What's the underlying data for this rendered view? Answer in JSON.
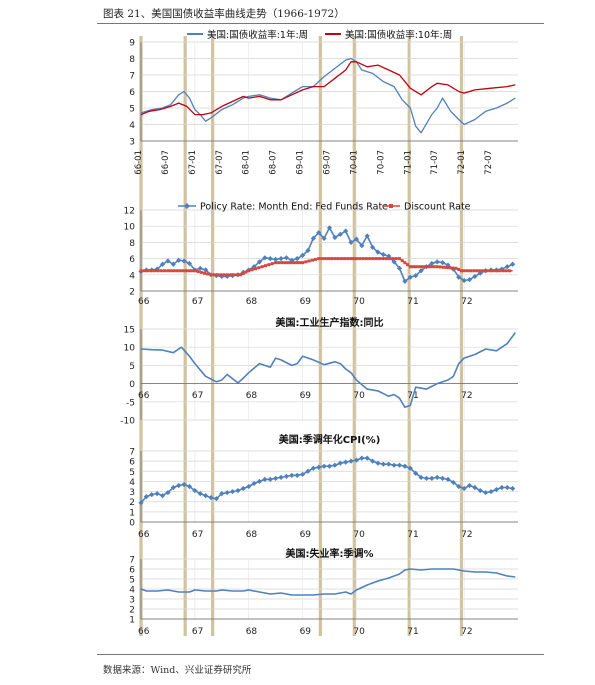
{
  "figure_title": "图表 21、美国国债收益率曲线走势（1966-1972）",
  "source": "数据来源：Wind、兴业证券研究所",
  "colors": {
    "blue": "#4f81bd",
    "red": "#c0000e",
    "recession_band": "#c9b98f",
    "diamond": "#4f81bd",
    "square": "#d9473f"
  },
  "chart_data": [
    {
      "type": "line",
      "title": "",
      "ylim": [
        3,
        9
      ],
      "yticks": [
        3,
        4,
        5,
        6,
        7,
        8,
        9
      ],
      "xlim": [
        1966.0,
        1973.0
      ],
      "xtick_labels": [
        "66-01",
        "66-07",
        "67-01",
        "67-07",
        "68-01",
        "68-07",
        "69-01",
        "69-07",
        "70-01",
        "70-07",
        "71-01",
        "71-07",
        "72-01",
        "72-07"
      ],
      "grid": true,
      "legend_position": "top",
      "series": [
        {
          "name": "美国:国债收益率:1年:周",
          "x": [
            1966.0,
            1966.2,
            1966.4,
            1966.55,
            1966.7,
            1966.8,
            1966.9,
            1967.0,
            1967.1,
            1967.2,
            1967.3,
            1967.5,
            1967.7,
            1967.9,
            1968.0,
            1968.2,
            1968.4,
            1968.6,
            1968.8,
            1969.0,
            1969.2,
            1969.4,
            1969.6,
            1969.8,
            1969.9,
            1970.0,
            1970.1,
            1970.3,
            1970.5,
            1970.7,
            1970.85,
            1971.0,
            1971.1,
            1971.2,
            1971.4,
            1971.5,
            1971.6,
            1971.75,
            1971.9,
            1972.0,
            1972.2,
            1972.4,
            1972.6,
            1972.8,
            1972.95
          ],
          "values": [
            4.7,
            4.9,
            5.0,
            5.2,
            5.8,
            6.0,
            5.6,
            4.9,
            4.6,
            4.2,
            4.4,
            4.9,
            5.2,
            5.6,
            5.7,
            5.8,
            5.6,
            5.5,
            5.9,
            6.3,
            6.3,
            6.9,
            7.4,
            7.9,
            8.0,
            7.8,
            7.3,
            7.1,
            6.6,
            6.3,
            5.5,
            5.0,
            3.9,
            3.5,
            4.6,
            5.0,
            5.6,
            4.8,
            4.3,
            4.0,
            4.3,
            4.8,
            5.0,
            5.3,
            5.6
          ]
        },
        {
          "name": "美国:国债收益率:10年:周",
          "x": [
            1966.0,
            1966.15,
            1966.35,
            1966.55,
            1966.7,
            1966.85,
            1967.0,
            1967.15,
            1967.3,
            1967.5,
            1967.7,
            1967.9,
            1968.0,
            1968.2,
            1968.4,
            1968.6,
            1968.8,
            1969.0,
            1969.2,
            1969.4,
            1969.6,
            1969.8,
            1969.9,
            1970.0,
            1970.2,
            1970.4,
            1970.6,
            1970.8,
            1971.0,
            1971.2,
            1971.4,
            1971.5,
            1971.7,
            1971.9,
            1972.0,
            1972.2,
            1972.5,
            1972.8,
            1972.95
          ],
          "values": [
            4.6,
            4.8,
            4.9,
            5.1,
            5.3,
            5.1,
            4.6,
            4.6,
            4.7,
            5.1,
            5.4,
            5.7,
            5.6,
            5.7,
            5.5,
            5.5,
            5.8,
            6.1,
            6.3,
            6.3,
            6.8,
            7.3,
            7.8,
            7.8,
            7.5,
            7.6,
            7.3,
            7.0,
            6.2,
            5.8,
            6.3,
            6.5,
            6.4,
            6.0,
            5.9,
            6.1,
            6.2,
            6.3,
            6.4
          ]
        }
      ]
    },
    {
      "type": "line",
      "title": "",
      "ylim": [
        2,
        12
      ],
      "yticks": [
        2,
        4,
        6,
        8,
        10,
        12
      ],
      "xlim": [
        1966.0,
        1973.0
      ],
      "xtick_labels": [
        "66",
        "67",
        "68",
        "69",
        "70",
        "71",
        "72"
      ],
      "grid": true,
      "legend_position": "top",
      "series": [
        {
          "name": "Policy Rate: Month End: Fed Funds Rate",
          "marker": "diamond",
          "x": [
            1966.0,
            1966.1,
            1966.2,
            1966.3,
            1966.4,
            1966.5,
            1966.6,
            1966.7,
            1966.8,
            1966.9,
            1967.0,
            1967.1,
            1967.2,
            1967.3,
            1967.4,
            1967.5,
            1967.6,
            1967.7,
            1967.8,
            1967.9,
            1968.0,
            1968.1,
            1968.2,
            1968.3,
            1968.4,
            1968.5,
            1968.6,
            1968.7,
            1968.8,
            1968.9,
            1969.0,
            1969.1,
            1969.2,
            1969.3,
            1969.4,
            1969.5,
            1969.6,
            1969.7,
            1969.8,
            1969.9,
            1970.0,
            1970.1,
            1970.2,
            1970.3,
            1970.4,
            1970.5,
            1970.6,
            1970.7,
            1970.8,
            1970.9,
            1971.0,
            1971.1,
            1971.2,
            1971.3,
            1971.4,
            1971.5,
            1971.6,
            1971.7,
            1971.8,
            1971.9,
            1972.0,
            1972.1,
            1972.2,
            1972.3,
            1972.4,
            1972.5,
            1972.6,
            1972.7,
            1972.8,
            1972.9
          ],
          "values": [
            4.4,
            4.6,
            4.6,
            4.7,
            5.3,
            5.7,
            5.3,
            5.8,
            5.7,
            5.4,
            4.6,
            4.8,
            4.6,
            4.0,
            3.9,
            3.8,
            3.8,
            3.9,
            4.0,
            4.3,
            4.6,
            5.0,
            5.6,
            6.1,
            6.0,
            5.9,
            6.0,
            6.1,
            5.8,
            6.0,
            6.4,
            7.0,
            8.5,
            9.2,
            8.5,
            9.8,
            8.6,
            9.0,
            9.4,
            8.0,
            8.4,
            7.6,
            8.8,
            7.4,
            6.8,
            6.5,
            6.3,
            5.6,
            4.8,
            3.2,
            3.7,
            3.9,
            4.5,
            5.0,
            5.4,
            5.6,
            5.5,
            5.2,
            4.7,
            3.7,
            3.3,
            3.4,
            3.8,
            4.2,
            4.5,
            4.6,
            4.6,
            4.7,
            5.0,
            5.3
          ]
        },
        {
          "name": "Discount Rate",
          "marker": "square",
          "x": [
            1966.0,
            1966.5,
            1966.9,
            1967.0,
            1967.3,
            1967.85,
            1968.0,
            1968.25,
            1968.5,
            1968.9,
            1969.0,
            1969.3,
            1969.9,
            1970.0,
            1970.8,
            1970.9,
            1971.0,
            1971.1,
            1971.5,
            1971.85,
            1971.95,
            1972.0,
            1972.9
          ],
          "values": [
            4.5,
            4.5,
            4.5,
            4.5,
            4.0,
            4.0,
            4.5,
            5.0,
            5.5,
            5.5,
            5.5,
            6.0,
            6.0,
            6.0,
            6.0,
            5.5,
            5.0,
            5.0,
            5.0,
            4.8,
            4.5,
            4.5,
            4.5
          ]
        }
      ]
    },
    {
      "type": "line",
      "title": "美国:工业生产指数:同比",
      "ylim": [
        -10,
        15
      ],
      "yticks": [
        -10,
        -5,
        0,
        5,
        10,
        15
      ],
      "xlim": [
        1966.0,
        1973.0
      ],
      "xtick_labels": [
        "66",
        "67",
        "68",
        "69",
        "70",
        "71",
        "72"
      ],
      "grid": true,
      "series": [
        {
          "name": "美国:工业生产指数:同比",
          "x": [
            1966.0,
            1966.2,
            1966.4,
            1966.6,
            1966.75,
            1966.9,
            1967.0,
            1967.2,
            1967.4,
            1967.5,
            1967.6,
            1967.8,
            1967.9,
            1968.0,
            1968.2,
            1968.4,
            1968.5,
            1968.6,
            1968.8,
            1968.9,
            1969.0,
            1969.2,
            1969.4,
            1969.6,
            1969.7,
            1969.8,
            1969.9,
            1970.0,
            1970.2,
            1970.4,
            1970.6,
            1970.7,
            1970.8,
            1970.9,
            1971.0,
            1971.1,
            1971.3,
            1971.5,
            1971.7,
            1971.8,
            1971.9,
            1972.0,
            1972.2,
            1972.4,
            1972.6,
            1972.8,
            1972.95
          ],
          "values": [
            9.5,
            9.3,
            9.2,
            8.5,
            10.0,
            7.5,
            5.5,
            2.0,
            0.5,
            1.0,
            2.5,
            0.2,
            1.5,
            3.0,
            5.5,
            4.5,
            7.0,
            6.5,
            5.0,
            5.5,
            7.5,
            6.5,
            5.2,
            6.0,
            5.5,
            4.0,
            3.0,
            1.0,
            -1.5,
            -2.0,
            -3.5,
            -3.0,
            -4.0,
            -6.5,
            -6.0,
            -1.0,
            -1.5,
            0.0,
            1.0,
            2.0,
            5.5,
            7.0,
            8.0,
            9.5,
            9.0,
            11.0,
            14.0
          ]
        }
      ]
    },
    {
      "type": "line",
      "title": "美国:季调年化CPI(%)",
      "ylim": [
        0,
        7
      ],
      "yticks": [
        0,
        1,
        2,
        3,
        4,
        5,
        6,
        7
      ],
      "xlim": [
        1966.0,
        1973.0
      ],
      "xtick_labels": [
        "66",
        "67",
        "68",
        "69",
        "70",
        "71",
        "72"
      ],
      "grid": true,
      "series": [
        {
          "name": "美国:季调年化CPI(%)",
          "marker": "diamond",
          "x": [
            1966.0,
            1966.1,
            1966.2,
            1966.3,
            1966.4,
            1966.5,
            1966.6,
            1966.7,
            1966.8,
            1966.9,
            1967.0,
            1967.1,
            1967.2,
            1967.3,
            1967.4,
            1967.5,
            1967.6,
            1967.7,
            1967.8,
            1967.9,
            1968.0,
            1968.1,
            1968.2,
            1968.3,
            1968.4,
            1968.5,
            1968.6,
            1968.7,
            1968.8,
            1968.9,
            1969.0,
            1969.1,
            1969.2,
            1969.3,
            1969.4,
            1969.5,
            1969.6,
            1969.7,
            1969.8,
            1969.9,
            1970.0,
            1970.1,
            1970.2,
            1970.3,
            1970.4,
            1970.5,
            1970.6,
            1970.7,
            1970.8,
            1970.9,
            1971.0,
            1971.1,
            1971.2,
            1971.3,
            1971.4,
            1971.5,
            1971.6,
            1971.7,
            1971.8,
            1971.9,
            1972.0,
            1972.1,
            1972.2,
            1972.3,
            1972.4,
            1972.5,
            1972.6,
            1972.7,
            1972.8,
            1972.9
          ],
          "values": [
            1.9,
            2.5,
            2.7,
            2.8,
            2.6,
            2.9,
            3.4,
            3.6,
            3.7,
            3.5,
            3.1,
            2.8,
            2.6,
            2.4,
            2.3,
            2.8,
            2.9,
            3.0,
            3.1,
            3.3,
            3.5,
            3.8,
            4.0,
            4.2,
            4.2,
            4.3,
            4.4,
            4.5,
            4.6,
            4.6,
            4.7,
            5.0,
            5.3,
            5.4,
            5.5,
            5.5,
            5.6,
            5.8,
            5.9,
            6.0,
            6.1,
            6.3,
            6.3,
            6.0,
            5.8,
            5.7,
            5.7,
            5.6,
            5.6,
            5.5,
            5.3,
            4.8,
            4.4,
            4.3,
            4.3,
            4.4,
            4.3,
            4.2,
            3.9,
            3.5,
            3.3,
            3.6,
            3.4,
            3.1,
            2.9,
            3.0,
            3.2,
            3.4,
            3.4,
            3.3
          ]
        }
      ]
    },
    {
      "type": "line",
      "title": "美国:失业率:季调%",
      "ylim": [
        1,
        7
      ],
      "yticks": [
        1,
        2,
        3,
        4,
        5,
        6,
        7
      ],
      "xlim": [
        1966.0,
        1973.0
      ],
      "xtick_labels": [
        "66",
        "67",
        "68",
        "69",
        "70",
        "71",
        "72"
      ],
      "grid": true,
      "series": [
        {
          "name": "美国:失业率:季调%",
          "x": [
            1966.0,
            1966.1,
            1966.3,
            1966.5,
            1966.7,
            1966.9,
            1967.0,
            1967.2,
            1967.4,
            1967.5,
            1967.7,
            1967.9,
            1968.0,
            1968.2,
            1968.4,
            1968.6,
            1968.8,
            1969.0,
            1969.2,
            1969.4,
            1969.6,
            1969.8,
            1969.9,
            1970.0,
            1970.2,
            1970.4,
            1970.6,
            1970.8,
            1970.9,
            1971.0,
            1971.2,
            1971.4,
            1971.6,
            1971.8,
            1971.9,
            1972.0,
            1972.2,
            1972.4,
            1972.6,
            1972.8,
            1972.95
          ],
          "values": [
            4.0,
            3.8,
            3.8,
            3.9,
            3.7,
            3.7,
            3.9,
            3.8,
            3.8,
            3.9,
            3.8,
            3.8,
            3.9,
            3.7,
            3.5,
            3.6,
            3.4,
            3.4,
            3.4,
            3.5,
            3.5,
            3.7,
            3.5,
            3.9,
            4.4,
            4.8,
            5.1,
            5.5,
            5.9,
            6.0,
            5.9,
            6.0,
            6.0,
            6.0,
            5.9,
            5.8,
            5.7,
            5.7,
            5.6,
            5.3,
            5.2
          ]
        }
      ]
    }
  ],
  "recession_bands_x": [
    1966.0,
    1966.82,
    1967.33,
    1969.33,
    1969.96,
    1970.98,
    1971.95
  ]
}
